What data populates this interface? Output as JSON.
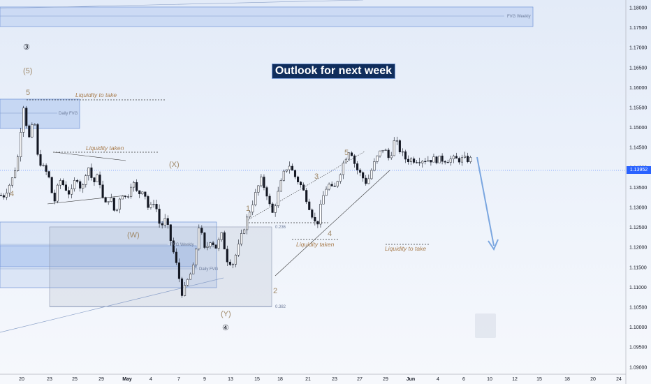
{
  "chart_title": "Outlook for next week",
  "last_price": "1.13952",
  "price_scale": {
    "ticks": [
      "1.18000",
      "1.17500",
      "1.17000",
      "1.16500",
      "1.16000",
      "1.15500",
      "1.15000",
      "1.14500",
      "1.14000",
      "1.13500",
      "1.13000",
      "1.12500",
      "1.12000",
      "1.11500",
      "1.11000",
      "1.10500",
      "1.10000",
      "1.09500",
      "1.09000"
    ]
  },
  "time_scale": {
    "ticks": [
      "20",
      "23",
      "25",
      "29",
      "May",
      "4",
      "7",
      "9",
      "13",
      "15",
      "18",
      "21",
      "23",
      "27",
      "29",
      "Jun",
      "4",
      "6",
      "10",
      "12",
      "15",
      "18",
      "20",
      "24"
    ]
  },
  "zones": {
    "fvg_weekly_top": "FVG Weekly",
    "daily_fvg_top": "Daily FVG",
    "fvg_weekly_mid": "FVG Weekly",
    "daily_fvg_mid": "Daily FVG",
    "fib_236": "0.236",
    "fib_382": "0.382"
  },
  "waves": {
    "w3": "③",
    "w5p": "(5)",
    "w5a": "5",
    "w4a": "4",
    "wX": "(X)",
    "wW": "(W)",
    "wY": "(Y)",
    "w4c": "④",
    "w1": "1",
    "w2": "2",
    "w3b": "3",
    "w4b": "4",
    "w5b": "5"
  },
  "notes": {
    "liq_take_1": "Liquidity to take",
    "liq_taken_1": "Liquidity taken",
    "liq_taken_2": "Liquidity taken",
    "liq_take_2": "Liquidity to take"
  },
  "colors": {
    "bull": "#131722",
    "bear": "#131722",
    "accent": "#2962ff",
    "title_bg": "#0f2d5c",
    "note": "#a97d4e"
  },
  "chart_data": {
    "type": "candlestick",
    "title": "Outlook for next week",
    "ylim": [
      1.0875,
      1.1825
    ],
    "price_levels": [
      1.18,
      1.175,
      1.17,
      1.165,
      1.16,
      1.155,
      1.15,
      1.145,
      1.14,
      1.135,
      1.13,
      1.125,
      1.12,
      1.115,
      1.11,
      1.105,
      1.1,
      1.095,
      1.09
    ],
    "last_price": 1.13952,
    "x_range_days": "Apr 18 - Jun 25",
    "path_points": [
      [
        0,
        1.133
      ],
      [
        3,
        1.137
      ],
      [
        5,
        1.142
      ],
      [
        7,
        1.156
      ],
      [
        9,
        1.147
      ],
      [
        11,
        1.152
      ],
      [
        12,
        1.143
      ],
      [
        14,
        1.14
      ],
      [
        16,
        1.138
      ],
      [
        18,
        1.131
      ],
      [
        20,
        1.137
      ],
      [
        22,
        1.135
      ],
      [
        24,
        1.133
      ],
      [
        26,
        1.138
      ],
      [
        28,
        1.134
      ],
      [
        30,
        1.141
      ],
      [
        32,
        1.136
      ],
      [
        34,
        1.138
      ],
      [
        36,
        1.13
      ],
      [
        38,
        1.133
      ],
      [
        40,
        1.128
      ],
      [
        42,
        1.134
      ],
      [
        44,
        1.132
      ],
      [
        46,
        1.137
      ],
      [
        48,
        1.133
      ],
      [
        50,
        1.135
      ],
      [
        52,
        1.129
      ],
      [
        54,
        1.132
      ],
      [
        56,
        1.125
      ],
      [
        58,
        1.127
      ],
      [
        60,
        1.121
      ],
      [
        62,
        1.115
      ],
      [
        64,
        1.108
      ],
      [
        66,
        1.112
      ],
      [
        68,
        1.115
      ],
      [
        70,
        1.126
      ],
      [
        72,
        1.119
      ],
      [
        74,
        1.122
      ],
      [
        76,
        1.12
      ],
      [
        78,
        1.123
      ],
      [
        80,
        1.117
      ],
      [
        82,
        1.116
      ],
      [
        84,
        1.12
      ],
      [
        86,
        1.125
      ],
      [
        88,
        1.129
      ],
      [
        90,
        1.133
      ],
      [
        92,
        1.137
      ],
      [
        94,
        1.134
      ],
      [
        96,
        1.128
      ],
      [
        98,
        1.133
      ],
      [
        100,
        1.138
      ],
      [
        102,
        1.141
      ],
      [
        104,
        1.138
      ],
      [
        106,
        1.136
      ],
      [
        108,
        1.133
      ],
      [
        110,
        1.129
      ],
      [
        112,
        1.125
      ],
      [
        114,
        1.132
      ],
      [
        116,
        1.136
      ],
      [
        118,
        1.134
      ],
      [
        120,
        1.138
      ],
      [
        122,
        1.142
      ],
      [
        124,
        1.145
      ],
      [
        126,
        1.14
      ],
      [
        128,
        1.138
      ],
      [
        130,
        1.136
      ],
      [
        132,
        1.14
      ],
      [
        134,
        1.143
      ],
      [
        136,
        1.145
      ],
      [
        138,
        1.142
      ],
      [
        140,
        1.147
      ],
      [
        142,
        1.144
      ],
      [
        144,
        1.142
      ]
    ],
    "forecast_arrow": [
      [
        144,
        1.141
      ],
      [
        150,
        1.12
      ]
    ]
  }
}
